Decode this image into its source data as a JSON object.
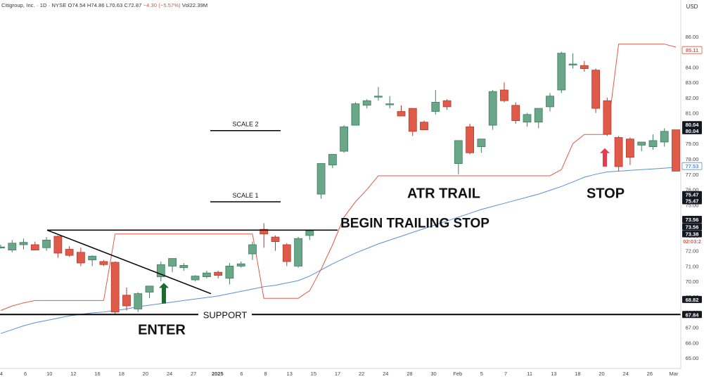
{
  "header": {
    "symbol": "Citigroup, Inc. · 1D · NYSE",
    "open": "O74.54",
    "high": "H74.86",
    "low": "L70.63",
    "close": "C72.87",
    "change": "−4.30 (−5.57%)",
    "volume": "Vol22.39M",
    "currency": "USD"
  },
  "colors": {
    "up": "#6aa688",
    "down": "#e05a4a",
    "atr_line": "#e05a4a",
    "ma_line": "#5b8fd6",
    "up_arrow": "#1b6b2f",
    "down_arrow": "#e8394d"
  },
  "chart_data": {
    "type": "candlestick",
    "ylim": [
      64.5,
      87
    ],
    "y_ticks": [
      "65.00",
      "66.00",
      "67.00",
      "68.00",
      "69.00",
      "70.00",
      "71.00",
      "72.00",
      "73.00",
      "74.00",
      "75.00",
      "76.00",
      "77.00",
      "78.00",
      "79.00",
      "80.00",
      "81.00",
      "82.00",
      "83.00",
      "84.00",
      "85.00",
      "86.00"
    ],
    "x_ticks": [
      "4",
      "6",
      "10",
      "12",
      "16",
      "18",
      "20",
      "24",
      "27",
      "2025",
      "6",
      "8",
      "13",
      "15",
      "17",
      "22",
      "24",
      "28",
      "30",
      "Feb",
      "5",
      "7",
      "11",
      "13",
      "18",
      "20",
      "24",
      "26",
      "Mar"
    ],
    "candles": [
      {
        "o": 72.25,
        "h": 72.4,
        "l": 72.15,
        "c": 72.25
      },
      {
        "o": 72.05,
        "h": 72.7,
        "l": 71.9,
        "c": 72.5
      },
      {
        "o": 72.4,
        "h": 72.8,
        "l": 72.1,
        "c": 72.55
      },
      {
        "o": 72.4,
        "h": 72.6,
        "l": 72.05,
        "c": 72.05
      },
      {
        "o": 72.2,
        "h": 72.9,
        "l": 72.0,
        "c": 72.7
      },
      {
        "o": 72.95,
        "h": 73.0,
        "l": 71.55,
        "c": 71.85
      },
      {
        "o": 72.1,
        "h": 72.3,
        "l": 71.6,
        "c": 71.7
      },
      {
        "o": 71.9,
        "h": 72.2,
        "l": 71.0,
        "c": 71.2
      },
      {
        "o": 71.4,
        "h": 71.7,
        "l": 71.0,
        "c": 71.65
      },
      {
        "o": 71.3,
        "h": 71.4,
        "l": 71.0,
        "c": 71.1
      },
      {
        "o": 71.25,
        "h": 71.3,
        "l": 67.8,
        "c": 68.0
      },
      {
        "o": 69.1,
        "h": 69.6,
        "l": 68.1,
        "c": 68.4
      },
      {
        "o": 68.2,
        "h": 69.3,
        "l": 68.0,
        "c": 69.2
      },
      {
        "o": 69.3,
        "h": 69.7,
        "l": 68.9,
        "c": 69.7
      },
      {
        "o": 70.3,
        "h": 71.3,
        "l": 70.0,
        "c": 71.1
      },
      {
        "o": 71.0,
        "h": 71.5,
        "l": 70.6,
        "c": 71.5
      },
      {
        "o": 70.9,
        "h": 71.2,
        "l": 70.7,
        "c": 71.05
      },
      {
        "o": 70.1,
        "h": 70.4,
        "l": 70.0,
        "c": 70.35
      },
      {
        "o": 70.3,
        "h": 70.7,
        "l": 70.2,
        "c": 70.55
      },
      {
        "o": 70.6,
        "h": 70.7,
        "l": 70.2,
        "c": 70.4
      },
      {
        "o": 70.2,
        "h": 71.2,
        "l": 69.8,
        "c": 71.0
      },
      {
        "o": 71.0,
        "h": 71.3,
        "l": 70.9,
        "c": 71.15
      },
      {
        "o": 71.8,
        "h": 72.6,
        "l": 71.4,
        "c": 72.4
      },
      {
        "o": 73.4,
        "h": 73.8,
        "l": 72.2,
        "c": 73.1
      },
      {
        "o": 72.9,
        "h": 73.0,
        "l": 72.0,
        "c": 72.6
      },
      {
        "o": 72.4,
        "h": 72.5,
        "l": 71.0,
        "c": 71.3
      },
      {
        "o": 71.0,
        "h": 72.9,
        "l": 70.9,
        "c": 72.8
      },
      {
        "o": 73.0,
        "h": 73.4,
        "l": 72.7,
        "c": 73.3
      },
      {
        "o": 75.7,
        "h": 77.7,
        "l": 75.4,
        "c": 77.7
      },
      {
        "o": 77.6,
        "h": 78.3,
        "l": 77.4,
        "c": 78.3
      },
      {
        "o": 78.5,
        "h": 80.2,
        "l": 78.4,
        "c": 80.1
      },
      {
        "o": 80.2,
        "h": 81.7,
        "l": 80.2,
        "c": 81.6
      },
      {
        "o": 81.5,
        "h": 81.9,
        "l": 81.3,
        "c": 81.8
      },
      {
        "o": 82.1,
        "h": 82.7,
        "l": 81.8,
        "c": 82.1
      },
      {
        "o": 81.6,
        "h": 82.1,
        "l": 81.3,
        "c": 81.6
      },
      {
        "o": 81.1,
        "h": 81.5,
        "l": 80.8,
        "c": 80.8
      },
      {
        "o": 81.3,
        "h": 81.3,
        "l": 79.5,
        "c": 79.8
      },
      {
        "o": 80.4,
        "h": 80.5,
        "l": 79.9,
        "c": 79.9
      },
      {
        "o": 81.1,
        "h": 82.5,
        "l": 80.9,
        "c": 81.7
      },
      {
        "o": 81.8,
        "h": 81.9,
        "l": 81.2,
        "c": 81.4
      },
      {
        "o": 77.7,
        "h": 79.2,
        "l": 77.0,
        "c": 79.2
      },
      {
        "o": 80.1,
        "h": 80.3,
        "l": 78.3,
        "c": 78.4
      },
      {
        "o": 78.8,
        "h": 79.3,
        "l": 78.4,
        "c": 79.3
      },
      {
        "o": 80.2,
        "h": 82.5,
        "l": 79.9,
        "c": 82.4
      },
      {
        "o": 82.5,
        "h": 83.0,
        "l": 81.7,
        "c": 81.8
      },
      {
        "o": 81.5,
        "h": 81.7,
        "l": 80.3,
        "c": 80.5
      },
      {
        "o": 80.4,
        "h": 81.0,
        "l": 80.1,
        "c": 80.9
      },
      {
        "o": 80.4,
        "h": 81.3,
        "l": 80.0,
        "c": 81.3
      },
      {
        "o": 81.4,
        "h": 82.3,
        "l": 81.1,
        "c": 82.1
      },
      {
        "o": 82.5,
        "h": 85.0,
        "l": 82.3,
        "c": 84.9
      },
      {
        "o": 84.2,
        "h": 84.9,
        "l": 83.9,
        "c": 84.2
      },
      {
        "o": 84.1,
        "h": 84.4,
        "l": 83.7,
        "c": 83.9
      },
      {
        "o": 83.8,
        "h": 83.9,
        "l": 81.0,
        "c": 81.3
      },
      {
        "o": 81.8,
        "h": 82.0,
        "l": 79.5,
        "c": 79.6
      },
      {
        "o": 79.4,
        "h": 79.5,
        "l": 77.2,
        "c": 77.5
      },
      {
        "o": 79.3,
        "h": 79.4,
        "l": 77.6,
        "c": 78.1
      },
      {
        "o": 78.9,
        "h": 79.1,
        "l": 78.5,
        "c": 79.1
      },
      {
        "o": 78.8,
        "h": 79.6,
        "l": 78.6,
        "c": 79.2
      },
      {
        "o": 79.1,
        "h": 80.0,
        "l": 78.8,
        "c": 79.8
      },
      {
        "o": 79.9,
        "h": 79.9,
        "l": 77.2,
        "c": 77.2
      }
    ],
    "atr_trail": [
      68.1,
      68.4,
      68.6,
      68.75,
      68.75,
      68.75,
      68.75,
      68.75,
      68.75,
      68.75,
      73.1,
      73.1,
      73.1,
      73.1,
      73.1,
      73.1,
      73.1,
      73.1,
      73.1,
      73.1,
      73.1,
      73.1,
      73.1,
      68.9,
      68.9,
      68.9,
      68.9,
      69.4,
      70.8,
      72.4,
      74.2,
      75.2,
      76.0,
      76.9,
      76.9,
      76.9,
      76.9,
      76.9,
      76.9,
      76.9,
      76.9,
      76.9,
      76.9,
      76.9,
      76.9,
      76.9,
      76.9,
      76.9,
      76.9,
      77.3,
      79.0,
      79.6,
      79.6,
      79.6,
      85.5,
      85.5,
      85.5,
      85.5,
      85.5,
      85.3
    ],
    "moving_average": [
      66.6,
      66.85,
      67.1,
      67.3,
      67.45,
      67.6,
      67.75,
      67.85,
      67.95,
      68.0,
      68.1,
      68.2,
      68.35,
      68.45,
      68.55,
      68.65,
      68.75,
      68.85,
      68.95,
      69.05,
      69.2,
      69.35,
      69.5,
      69.65,
      69.75,
      69.9,
      70.05,
      70.35,
      70.75,
      71.15,
      71.5,
      71.85,
      72.15,
      72.45,
      72.7,
      72.95,
      73.2,
      73.45,
      73.7,
      73.95,
      74.2,
      74.45,
      74.7,
      74.9,
      75.1,
      75.3,
      75.5,
      75.7,
      75.95,
      76.2,
      76.5,
      76.8,
      77.0,
      77.15,
      77.2,
      77.25,
      77.3,
      77.35,
      77.4,
      77.45
    ],
    "price_labels": [
      {
        "text": "85.11",
        "y": 85.11,
        "style": "outline-red"
      },
      {
        "text": "80.04",
        "y": 80.24,
        "style": "dark"
      },
      {
        "text": "80.04",
        "y": 79.84,
        "style": "dark"
      },
      {
        "text": "77.53",
        "y": 77.53,
        "style": "outline-blue"
      },
      {
        "text": "75.47",
        "y": 75.67,
        "style": "dark"
      },
      {
        "text": "75.47",
        "y": 75.27,
        "style": "dark"
      },
      {
        "text": "73.56",
        "y": 74.05,
        "style": "dark"
      },
      {
        "text": "73.56",
        "y": 73.58,
        "style": "dark"
      },
      {
        "text": "73.38",
        "y": 73.11,
        "style": "dark"
      },
      {
        "text": "02:03:2",
        "y": 72.62,
        "style": "red-text"
      },
      {
        "text": "68.82",
        "y": 68.82,
        "style": "dark"
      },
      {
        "text": "67.84",
        "y": 67.84,
        "style": "dark"
      }
    ],
    "annotations": {
      "scale2": "SCALE 2",
      "scale1": "SCALE 1",
      "atr_trail": "ATR TRAIL",
      "stop": "STOP",
      "begin_trailing_stop": "BEGIN TRAILING STOP",
      "support": "SUPPORT",
      "enter": "ENTER"
    },
    "levels": {
      "scale2": 79.85,
      "scale1": 75.2,
      "begin_trailing_stop": 73.35,
      "support": 67.84
    }
  }
}
